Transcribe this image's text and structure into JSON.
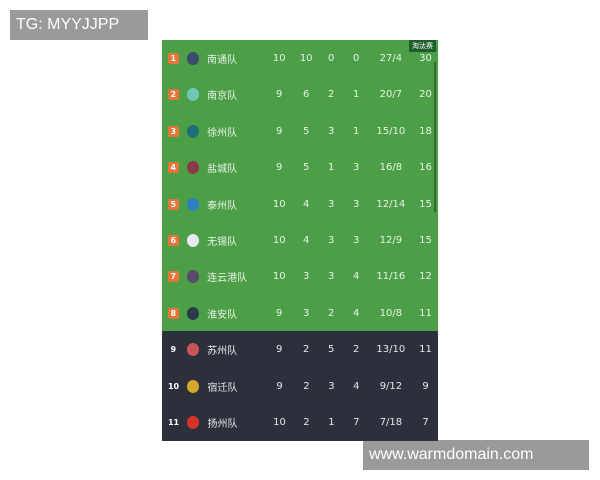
{
  "watermarks": {
    "top_left": "TG: MYYJJPP",
    "bottom_right": "www.warmdomain.com"
  },
  "badge": "淘汰赛",
  "colors": {
    "qualified": "#4c9f47",
    "eliminated": "#2b303a",
    "rank_badge": "#e8743a"
  },
  "rows": [
    {
      "rank": "1",
      "team": "南通队",
      "played": "10",
      "win": "10",
      "draw": "0",
      "loss": "0",
      "goals": "27/4",
      "points": "30",
      "zone": "green",
      "logo": "#3a4a6a"
    },
    {
      "rank": "2",
      "team": "南京队",
      "played": "9",
      "win": "6",
      "draw": "2",
      "loss": "1",
      "goals": "20/7",
      "points": "20",
      "zone": "green",
      "logo": "#6fc7b6"
    },
    {
      "rank": "3",
      "team": "徐州队",
      "played": "9",
      "win": "5",
      "draw": "3",
      "loss": "1",
      "goals": "15/10",
      "points": "18",
      "zone": "green",
      "logo": "#1f6f78"
    },
    {
      "rank": "4",
      "team": "盐城队",
      "played": "9",
      "win": "5",
      "draw": "1",
      "loss": "3",
      "goals": "16/8",
      "points": "16",
      "zone": "green",
      "logo": "#8a3a4a"
    },
    {
      "rank": "5",
      "team": "泰州队",
      "played": "10",
      "win": "4",
      "draw": "3",
      "loss": "3",
      "goals": "12/14",
      "points": "15",
      "zone": "green",
      "logo": "#2e7fc0"
    },
    {
      "rank": "6",
      "team": "无锡队",
      "played": "10",
      "win": "4",
      "draw": "3",
      "loss": "3",
      "goals": "12/9",
      "points": "15",
      "zone": "green",
      "logo": "#e8e8f0"
    },
    {
      "rank": "7",
      "team": "连云港队",
      "played": "10",
      "win": "3",
      "draw": "3",
      "loss": "4",
      "goals": "11/16",
      "points": "12",
      "zone": "green",
      "logo": "#5a4a6a"
    },
    {
      "rank": "8",
      "team": "淮安队",
      "played": "9",
      "win": "3",
      "draw": "2",
      "loss": "4",
      "goals": "10/8",
      "points": "11",
      "zone": "green",
      "logo": "#2a3a4a"
    },
    {
      "rank": "9",
      "team": "苏州队",
      "played": "9",
      "win": "2",
      "draw": "5",
      "loss": "2",
      "goals": "13/10",
      "points": "11",
      "zone": "dark",
      "logo": "#c9555a"
    },
    {
      "rank": "10",
      "team": "宿迁队",
      "played": "9",
      "win": "2",
      "draw": "3",
      "loss": "4",
      "goals": "9/12",
      "points": "9",
      "zone": "dark",
      "logo": "#d4a82a"
    },
    {
      "rank": "11",
      "team": "扬州队",
      "played": "10",
      "win": "2",
      "draw": "1",
      "loss": "7",
      "goals": "7/18",
      "points": "7",
      "zone": "dark",
      "logo": "#d8332a"
    }
  ]
}
